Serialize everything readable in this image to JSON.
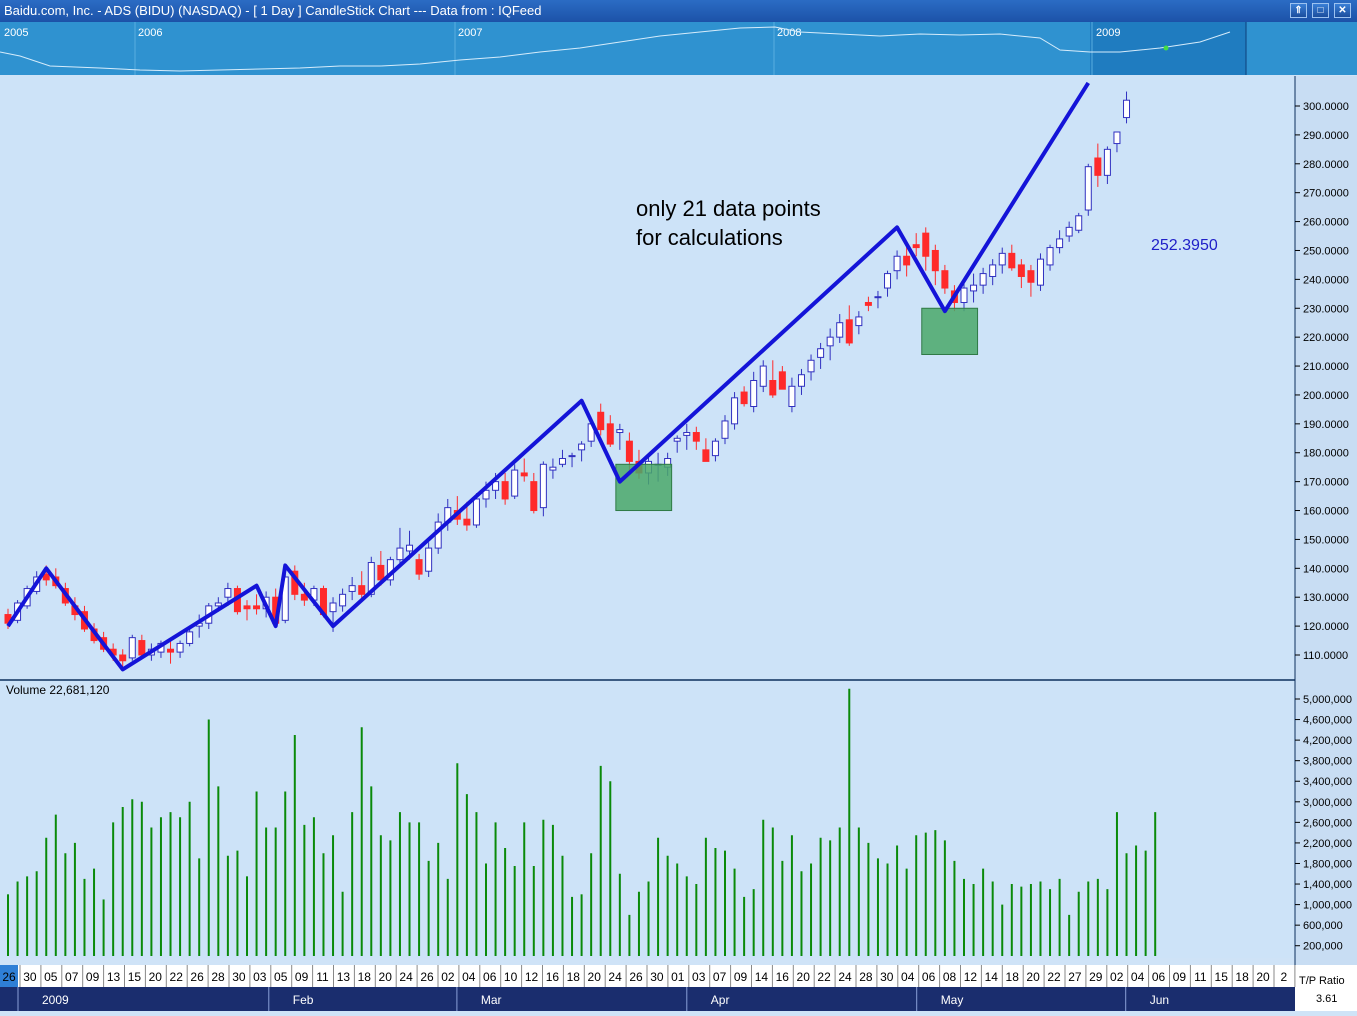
{
  "window": {
    "title": "Baidu.com, Inc. - ADS (BIDU) (NASDAQ) -  [ 1 Day ] CandleStick Chart --- Data from : IQFeed",
    "buttons": [
      "⇑",
      "□",
      "✕"
    ]
  },
  "overview": {
    "years": [
      "2005",
      "2006",
      "2007",
      "2008",
      "2009"
    ]
  },
  "annotation": {
    "line1": "only 21 data points",
    "line2": "for calculations",
    "price_label": "252.3950"
  },
  "volume_panel": {
    "label": "Volume 22,681,120"
  },
  "footer": {
    "tp_label": "T/P Ratio",
    "tp_value": "3.61"
  },
  "colors": {
    "up_candle": "#3030c0",
    "down_candle": "#ff2a2a",
    "zigzag": "#1414d8",
    "volume": "#0a8a0a",
    "box": "#4aa86a"
  },
  "chart_data": [
    {
      "type": "candlestick",
      "title": "",
      "x_labels": [
        "26",
        "30",
        "05",
        "07",
        "09",
        "13",
        "15",
        "20",
        "22",
        "26",
        "28",
        "30",
        "03",
        "05",
        "09",
        "11",
        "13",
        "18",
        "20",
        "24",
        "26",
        "02",
        "04",
        "06",
        "10",
        "12",
        "16",
        "18",
        "20",
        "24",
        "26",
        "30",
        "01",
        "03",
        "07",
        "09",
        "14",
        "16",
        "20",
        "22",
        "24",
        "28",
        "30",
        "04",
        "06",
        "08",
        "12",
        "14",
        "18",
        "20",
        "22",
        "27",
        "29",
        "02",
        "04",
        "06",
        "09",
        "11",
        "15",
        "18",
        "20",
        "2"
      ],
      "month_labels": [
        "2009",
        "Feb",
        "Mar",
        "Apr",
        "May",
        "Jun"
      ],
      "y_ticks": [
        "300.0000",
        "290.0000",
        "280.0000",
        "270.0000",
        "260.0000",
        "250.0000",
        "240.0000",
        "230.0000",
        "220.0000",
        "210.0000",
        "200.0000",
        "190.0000",
        "180.0000",
        "170.0000",
        "160.0000",
        "150.0000",
        "140.0000",
        "130.0000",
        "120.0000",
        "110.0000"
      ],
      "ylim": [
        105,
        310
      ],
      "ohlc": [
        [
          124,
          126,
          119,
          121
        ],
        [
          122,
          129,
          121,
          128
        ],
        [
          127,
          134,
          126,
          133
        ],
        [
          132,
          139,
          131,
          137
        ],
        [
          138,
          141,
          134,
          136
        ],
        [
          137,
          140,
          133,
          134
        ],
        [
          133,
          135,
          127,
          128
        ],
        [
          127,
          130,
          122,
          124
        ],
        [
          125,
          127,
          118,
          119
        ],
        [
          119,
          121,
          114,
          115
        ],
        [
          116,
          118,
          111,
          112
        ],
        [
          112,
          114,
          108,
          110
        ],
        [
          110,
          112,
          106,
          108
        ],
        [
          109,
          117,
          108,
          116
        ],
        [
          115,
          117,
          109,
          110
        ],
        [
          110,
          114,
          108,
          112
        ],
        [
          111,
          115,
          109,
          114
        ],
        [
          112,
          116,
          107,
          111
        ],
        [
          111,
          115,
          109,
          114
        ],
        [
          114,
          120,
          113,
          118
        ],
        [
          120,
          124,
          116,
          121
        ],
        [
          121,
          128,
          119,
          127
        ],
        [
          127,
          130,
          125,
          128
        ],
        [
          130,
          135,
          127,
          133
        ],
        [
          133,
          134,
          124,
          125
        ],
        [
          127,
          129,
          122,
          126
        ],
        [
          127,
          131,
          124,
          126
        ],
        [
          126,
          132,
          123,
          130
        ],
        [
          130,
          133,
          120,
          121
        ],
        [
          122,
          139,
          121,
          137
        ],
        [
          139,
          141,
          129,
          131
        ],
        [
          131,
          135,
          127,
          129
        ],
        [
          129,
          134,
          127,
          133
        ],
        [
          133,
          134,
          123,
          124
        ],
        [
          125,
          130,
          118,
          128
        ],
        [
          127,
          133,
          125,
          131
        ],
        [
          132,
          137,
          129,
          134
        ],
        [
          134,
          139,
          129,
          131
        ],
        [
          131,
          144,
          130,
          142
        ],
        [
          141,
          146,
          134,
          136
        ],
        [
          136,
          144,
          134,
          143
        ],
        [
          143,
          154,
          141,
          147
        ],
        [
          146,
          153,
          143,
          148
        ],
        [
          143,
          145,
          136,
          138
        ],
        [
          139,
          149,
          137,
          147
        ],
        [
          147,
          159,
          145,
          156
        ],
        [
          156,
          164,
          153,
          161
        ],
        [
          160,
          165,
          155,
          157
        ],
        [
          157,
          163,
          153,
          155
        ],
        [
          155,
          166,
          154,
          164
        ],
        [
          164,
          170,
          161,
          167
        ],
        [
          167,
          173,
          164,
          170
        ],
        [
          170,
          173,
          162,
          164
        ],
        [
          165,
          176,
          164,
          174
        ],
        [
          173,
          178,
          170,
          172
        ],
        [
          170,
          173,
          159,
          160
        ],
        [
          161,
          177,
          158,
          176
        ],
        [
          174,
          178,
          171,
          175
        ],
        [
          176,
          181,
          175,
          178
        ],
        [
          179,
          180,
          175,
          179
        ],
        [
          181,
          184,
          177,
          183
        ],
        [
          184,
          192,
          182,
          190
        ],
        [
          194,
          197,
          186,
          188
        ],
        [
          190,
          193,
          182,
          183
        ],
        [
          187,
          190,
          181,
          188
        ],
        [
          184,
          187,
          174,
          177
        ],
        [
          177,
          181,
          171,
          173
        ],
        [
          173,
          179,
          169,
          177
        ],
        [
          176,
          180,
          170,
          176
        ],
        [
          175,
          180,
          172,
          178
        ],
        [
          184,
          186,
          180,
          185
        ],
        [
          186,
          190,
          181,
          187
        ],
        [
          187,
          189,
          181,
          184
        ],
        [
          181,
          185,
          177,
          177
        ],
        [
          179,
          185,
          177,
          184
        ],
        [
          185,
          193,
          183,
          191
        ],
        [
          190,
          201,
          188,
          199
        ],
        [
          201,
          203,
          196,
          197
        ],
        [
          196,
          208,
          194,
          205
        ],
        [
          203,
          212,
          201,
          210
        ],
        [
          205,
          212,
          199,
          200
        ],
        [
          208,
          210,
          202,
          202
        ],
        [
          196,
          206,
          194,
          203
        ],
        [
          203,
          209,
          200,
          207
        ],
        [
          208,
          214,
          205,
          212
        ],
        [
          213,
          218,
          209,
          216
        ],
        [
          217,
          223,
          212,
          220
        ],
        [
          220,
          228,
          218,
          225
        ],
        [
          226,
          231,
          217,
          218
        ],
        [
          224,
          229,
          221,
          227
        ],
        [
          232,
          234,
          229,
          231
        ],
        [
          234,
          236,
          230,
          234
        ],
        [
          237,
          243,
          234,
          242
        ],
        [
          243,
          250,
          240,
          248
        ],
        [
          248,
          252,
          241,
          245
        ],
        [
          252,
          256,
          248,
          251
        ],
        [
          256,
          258,
          243,
          248
        ],
        [
          250,
          252,
          238,
          243
        ],
        [
          243,
          245,
          235,
          237
        ],
        [
          236,
          238,
          229,
          232
        ],
        [
          232,
          240,
          229,
          237
        ],
        [
          236,
          242,
          232,
          238
        ],
        [
          238,
          244,
          235,
          242
        ],
        [
          241,
          247,
          238,
          245
        ],
        [
          245,
          251,
          242,
          249
        ],
        [
          249,
          252,
          243,
          244
        ],
        [
          245,
          247,
          237,
          241
        ],
        [
          243,
          245,
          234,
          239
        ],
        [
          238,
          249,
          236,
          247
        ],
        [
          245,
          252,
          243,
          251
        ],
        [
          251,
          257,
          249,
          254
        ],
        [
          255,
          260,
          253,
          258
        ],
        [
          257,
          263,
          256,
          262
        ],
        [
          264,
          280,
          262,
          279
        ],
        [
          282,
          287,
          272,
          276
        ],
        [
          276,
          286,
          273,
          285
        ],
        [
          287,
          291,
          284,
          291
        ],
        [
          296,
          305,
          294,
          302
        ]
      ],
      "volume_y_ticks": [
        "5,000,000",
        "4,600,000",
        "4,200,000",
        "3,800,000",
        "3,400,000",
        "3,000,000",
        "2,600,000",
        "2,200,000",
        "1,800,000",
        "1,400,000",
        "1,000,000",
        "600,000",
        "200,000"
      ],
      "volume_ylim": [
        0,
        5300000
      ],
      "volumes": [
        1200000,
        1450000,
        1550000,
        1650000,
        2300000,
        2750000,
        2000000,
        2200000,
        1500000,
        1700000,
        1100000,
        2600000,
        2900000,
        3050000,
        3000000,
        2500000,
        2700000,
        2800000,
        2700000,
        3000000,
        1900000,
        4600000,
        3300000,
        1950000,
        2050000,
        1550000,
        3200000,
        2500000,
        2500000,
        3200000,
        4300000,
        2550000,
        2700000,
        2000000,
        2350000,
        1250000,
        2800000,
        4450000,
        3300000,
        2350000,
        2250000,
        2800000,
        2600000,
        2600000,
        1850000,
        2200000,
        1500000,
        3750000,
        3150000,
        2800000,
        1800000,
        2600000,
        2100000,
        1750000,
        2600000,
        1750000,
        2650000,
        2550000,
        1950000,
        1150000,
        1200000,
        2000000,
        3700000,
        3400000,
        1600000,
        800000,
        1250000,
        1450000,
        2300000,
        1950000,
        1800000,
        1550000,
        1400000,
        2300000,
        2100000,
        2050000,
        1700000,
        1150000,
        1300000,
        2650000,
        2500000,
        1850000,
        2350000,
        1650000,
        1800000,
        2300000,
        2250000,
        2500000,
        5200000,
        2500000,
        2200000,
        1900000,
        1800000,
        2150000,
        1700000,
        2350000,
        2400000,
        2450000,
        2250000,
        1850000,
        1500000,
        1400000,
        1700000,
        1450000,
        1000000,
        1400000,
        1350000,
        1400000,
        1450000,
        1300000,
        1500000,
        800000,
        1250000,
        1450000,
        1500000,
        1300000,
        2800000,
        2000000,
        2150000,
        2050000,
        2800000
      ],
      "zigzag": [
        {
          "i": 0,
          "price": 120
        },
        {
          "i": 4,
          "price": 140
        },
        {
          "i": 12,
          "price": 105
        },
        {
          "i": 26,
          "price": 134
        },
        {
          "i": 28,
          "price": 120
        },
        {
          "i": 29,
          "price": 141
        },
        {
          "i": 34,
          "price": 120
        },
        {
          "i": 60,
          "price": 198
        },
        {
          "i": 64,
          "price": 170
        },
        {
          "i": 93,
          "price": 258
        },
        {
          "i": 98,
          "price": 229
        },
        {
          "i": 113,
          "price": 308
        }
      ],
      "boxes": [
        {
          "i0": 64,
          "i1": 69,
          "p_top": 176,
          "p_bottom": 160
        },
        {
          "i0": 96,
          "i1": 101,
          "p_top": 230,
          "p_bottom": 214
        }
      ]
    }
  ]
}
